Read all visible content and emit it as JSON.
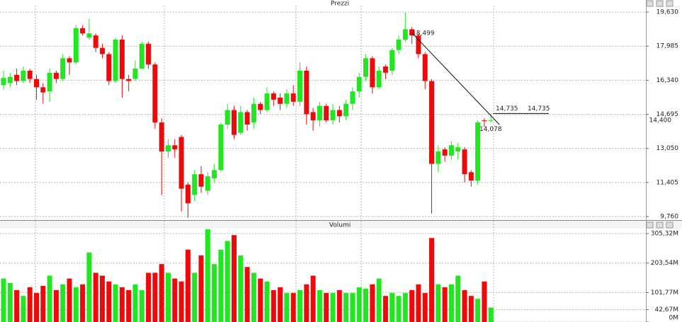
{
  "chart_data": [
    {
      "type": "candlestick",
      "title": "Prezzi",
      "open": [
        16100,
        16200,
        16600,
        16300,
        16800,
        16400,
        16000,
        15800,
        16700,
        16400,
        17400,
        17200,
        18850,
        18400,
        18500,
        17900,
        17600,
        16300,
        18300,
        16400,
        16400,
        16900,
        18100,
        17100,
        14300,
        12900,
        13200,
        13600,
        11300,
        10800,
        11800,
        11000,
        11600,
        12000,
        14200,
        14900,
        13800,
        14800,
        14300,
        15200,
        14900,
        15700,
        15500,
        15200,
        15700,
        15300,
        16800,
        14800,
        14400,
        15100,
        14400,
        14900,
        14600,
        15200,
        15800,
        16500,
        17400,
        16000,
        17000,
        16800,
        17800,
        18300,
        18800,
        18500,
        17600,
        16300,
        12300,
        13000,
        12700,
        12900,
        13000,
        11900,
        11500,
        14400,
        14380
      ],
      "high": [
        16800,
        16700,
        16900,
        17000,
        16900,
        16600,
        16200,
        16900,
        16800,
        17600,
        17500,
        19000,
        19000,
        19300,
        18600,
        18100,
        17700,
        18400,
        18500,
        16600,
        17300,
        18200,
        18200,
        17200,
        14500,
        13500,
        13500,
        13700,
        11400,
        12000,
        12200,
        11900,
        12300,
        14300,
        15200,
        15100,
        15100,
        14900,
        15500,
        15300,
        16000,
        15800,
        15700,
        15900,
        16100,
        17200,
        17000,
        15000,
        15300,
        15200,
        15200,
        15100,
        15400,
        16000,
        16700,
        17600,
        17500,
        17000,
        17100,
        17900,
        18500,
        19600,
        18900,
        18600,
        17700,
        16400,
        13200,
        13100,
        13400,
        13300,
        13100,
        12000,
        14400,
        14500,
        14735
      ],
      "low": [
        15900,
        16000,
        16100,
        16200,
        16200,
        15400,
        15200,
        15300,
        16200,
        16300,
        16600,
        17100,
        18500,
        18300,
        17700,
        17400,
        16100,
        16200,
        15500,
        15800,
        16300,
        16900,
        16900,
        14000,
        10800,
        12600,
        12600,
        10000,
        9700,
        10500,
        10900,
        10800,
        11400,
        11900,
        14000,
        13500,
        13700,
        13900,
        14000,
        14700,
        14800,
        15100,
        14900,
        15000,
        15100,
        15100,
        14200,
        13900,
        14100,
        14300,
        14200,
        14300,
        14400,
        14900,
        15500,
        16300,
        15700,
        15900,
        16400,
        16600,
        17600,
        18200,
        18100,
        17400,
        15900,
        9900,
        11900,
        12400,
        12500,
        12500,
        11400,
        11200,
        11300,
        14078,
        14300
      ],
      "close": [
        16450,
        16500,
        16300,
        16800,
        16400,
        16000,
        15750,
        16700,
        16400,
        17400,
        17200,
        18850,
        18600,
        18600,
        17900,
        17600,
        16300,
        18300,
        16400,
        16300,
        16900,
        18100,
        17100,
        14300,
        12900,
        13200,
        13000,
        11100,
        10400,
        11800,
        11200,
        11700,
        12000,
        14200,
        14900,
        13700,
        14800,
        14200,
        15200,
        14900,
        15700,
        15400,
        15200,
        15700,
        15300,
        16800,
        14700,
        14400,
        15100,
        14400,
        14900,
        14600,
        15200,
        15800,
        16500,
        17400,
        16000,
        16800,
        16700,
        17800,
        18300,
        18800,
        18500,
        17600,
        16300,
        12300,
        12900,
        12700,
        13200,
        13100,
        11800,
        11500,
        14300,
        14380,
        14400
      ],
      "ylim": [
        9620,
        19940
      ],
      "yticks": [
        {
          "value": 9760,
          "label": "9,760"
        },
        {
          "value": 11405,
          "label": "11,405"
        },
        {
          "value": 13050,
          "label": "13,050"
        },
        {
          "value": 14695,
          "label": "14,695"
        },
        {
          "value": 16340,
          "label": "16,340"
        },
        {
          "value": 17985,
          "label": "17,985"
        },
        {
          "value": 19630,
          "label": "19,630"
        }
      ],
      "last_price": {
        "value": 14400,
        "label": "14,400"
      },
      "annotations": [
        {
          "value": 18499,
          "label": "18,499"
        },
        {
          "value": 14735,
          "label": "14,735"
        },
        {
          "value": 14735,
          "label": "14,735"
        },
        {
          "value": 14078,
          "label": "14,078"
        }
      ],
      "up_color": "#22e622",
      "down_color": "#ee0a0a",
      "grid": true
    },
    {
      "type": "bar",
      "title": "Volumi",
      "values": [
        150,
        135,
        110,
        90,
        120,
        100,
        125,
        160,
        110,
        130,
        150,
        120,
        130,
        240,
        170,
        160,
        140,
        130,
        120,
        110,
        130,
        110,
        170,
        170,
        200,
        170,
        150,
        140,
        250,
        170,
        230,
        320,
        200,
        250,
        280,
        300,
        230,
        190,
        170,
        150,
        140,
        110,
        120,
        100,
        100,
        110,
        130,
        160,
        110,
        100,
        100,
        110,
        100,
        100,
        120,
        115,
        130,
        150,
        90,
        100,
        90,
        100,
        110,
        130,
        100,
        290,
        130,
        120,
        130,
        160,
        110,
        90,
        80,
        140,
        50
      ],
      "ylim": [
        0,
        325
      ],
      "yticks": [
        {
          "value": 0,
          "label": "0M"
        },
        {
          "value": 42.67,
          "label": "42,67M"
        },
        {
          "value": 101.77,
          "label": "101,77M"
        },
        {
          "value": 203.54,
          "label": "203,54M"
        },
        {
          "value": 305.32,
          "label": "305,32M"
        }
      ],
      "grid": true
    }
  ]
}
